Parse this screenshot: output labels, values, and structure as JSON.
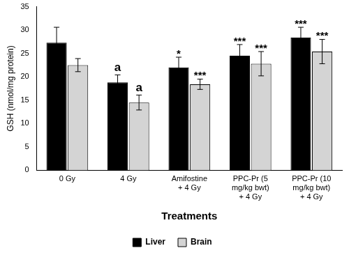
{
  "chart_data": {
    "type": "bar",
    "x_label": "Treatments",
    "y_label": "GSH (nmol/mg protein)",
    "categories": [
      "0 Gy",
      "4 Gy",
      "Amifostine + 4 Gy",
      "PPC-Pr (5 mg/kg bwt) + 4 Gy",
      "PPC-Pr (10 mg/kg bwt) + 4 Gy"
    ],
    "series": [
      {
        "name": "Liver",
        "color": "#000000",
        "values": [
          27.3,
          18.8,
          22.0,
          24.5,
          28.4
        ],
        "errors": [
          3.3,
          1.6,
          2.2,
          2.4,
          2.2
        ],
        "annotations": [
          null,
          "a",
          "*",
          "***",
          "***"
        ]
      },
      {
        "name": "Brain",
        "color": "#d4d4d4",
        "values": [
          22.5,
          14.5,
          18.4,
          22.8,
          25.4
        ],
        "errors": [
          1.4,
          1.6,
          1.1,
          2.6,
          2.6
        ],
        "annotations": [
          null,
          "a",
          "***",
          "***",
          "***"
        ]
      }
    ],
    "ylim": [
      0,
      35
    ],
    "yticks": [
      0,
      5,
      10,
      15,
      20,
      25,
      30,
      35
    ],
    "grid": false,
    "legend": "bottom"
  }
}
